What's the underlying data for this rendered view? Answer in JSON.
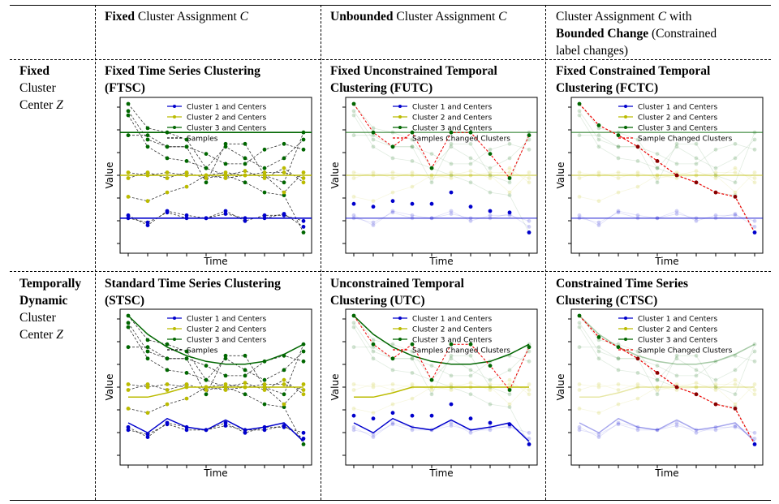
{
  "header": {
    "col1": {
      "pre": "",
      "bold": "Fixed",
      "post": " Cluster Assignment ",
      "var": "C"
    },
    "col2": {
      "bold": "Unbounded",
      "post": " Cluster Assignment ",
      "var": "C"
    },
    "col3": {
      "line1_pre": "Cluster Assignment ",
      "line1_var": "C",
      "line1_post": " with",
      "line2_bold": "Bounded Change",
      "line2_post": " (Constrained",
      "line3": "label changes)"
    }
  },
  "rows": {
    "fixed": {
      "line1": "Fixed",
      "line2": "Cluster",
      "line3": "Center ",
      "var": "Z"
    },
    "dynamic": {
      "line1": "Temporally",
      "line2": "Dynamic",
      "line3": "Cluster",
      "line4": "Center ",
      "var": "Z"
    }
  },
  "panels": [
    {
      "title1": "Fixed Time Series Clustering",
      "title2": "(FTSC)",
      "legend": [
        "Cluster 1 and Centers",
        "Cluster 2 and Centers",
        "Cluster 3 and Centers",
        "Samples"
      ]
    },
    {
      "title1": "Fixed Unconstrained Temporal",
      "title2": "Clustering (FUTC)",
      "legend": [
        "Cluster 1 and Centers",
        "Cluster 2 and Centers",
        "Cluster 3 and Centers",
        "Samples Changed Clusters"
      ]
    },
    {
      "title1": "Fixed Constrained Temporal",
      "title2": "Clustering (FCTC)",
      "legend": [
        "Cluster 1 and Centers",
        "Cluster 2 and Centers",
        "Cluster 3 and Centers",
        "Sample Changed Clusters"
      ]
    },
    {
      "title1": "Standard Time Series Clustering",
      "title2": "(STSC)",
      "legend": [
        "Cluster 1 and Centers",
        "Cluster 2 and Centers",
        "Cluster 3 and Centers",
        "Samples"
      ]
    },
    {
      "title1": "Unconstrained Temporal",
      "title2": "Clustering (UTC)",
      "legend": [
        "Cluster 1 and Centers",
        "Cluster 2 and Centers",
        "Cluster 3 and Centers",
        "Samples Changed Clusters"
      ]
    },
    {
      "title1": "Constrained Time Series",
      "title2": "Clustering (CTSC)",
      "legend": [
        "Cluster 1 and Centers",
        "Cluster 2 and Centers",
        "Cluster 3 and Centers",
        "Sample Changed Clusters"
      ]
    }
  ],
  "axes": {
    "xlabel": "Time",
    "ylabel": "Value"
  },
  "colors": {
    "c1": "#0000cc",
    "c2": "#bbbb00",
    "c3": "#006600",
    "sample": "#000000",
    "changed": "#ee0000"
  },
  "chart_data": {
    "type": "line",
    "x": [
      0,
      1,
      2,
      3,
      4,
      5,
      6,
      7,
      8,
      9
    ],
    "fixed_centers": {
      "c1": 0.2,
      "c2": 0.5,
      "c3": 0.8
    },
    "dynamic_centers": {
      "c1": [
        0.25,
        0.18,
        0.28,
        0.22,
        0.2,
        0.27,
        0.2,
        0.22,
        0.25,
        0.12
      ],
      "c2": [
        0.43,
        0.43,
        0.46,
        0.5,
        0.5,
        0.5,
        0.5,
        0.5,
        0.5,
        0.5
      ],
      "c3": [
        1.0,
        0.87,
        0.78,
        0.72,
        0.68,
        0.66,
        0.66,
        0.68,
        0.73,
        0.8
      ]
    },
    "samples": [
      [
        0.95,
        0.75,
        0.7,
        0.7,
        0.45,
        0.72,
        0.72,
        0.5,
        0.45,
        0.8
      ],
      [
        1.0,
        0.83,
        0.8,
        0.75,
        0.55,
        0.7,
        0.62,
        0.55,
        0.62,
        0.75
      ],
      [
        0.78,
        0.78,
        0.7,
        0.7,
        0.65,
        0.58,
        0.58,
        0.68,
        0.72,
        0.68
      ],
      [
        0.92,
        0.7,
        0.62,
        0.6,
        0.55,
        0.5,
        0.45,
        0.38,
        0.36,
        0.1
      ],
      [
        0.52,
        0.5,
        0.52,
        0.5,
        0.5,
        0.52,
        0.5,
        0.52,
        0.52,
        0.48
      ],
      [
        0.48,
        0.52,
        0.48,
        0.52,
        0.48,
        0.5,
        0.53,
        0.48,
        0.55,
        0.45
      ],
      [
        0.35,
        0.32,
        0.38,
        0.42,
        0.5,
        0.48,
        0.5,
        0.5,
        0.38,
        0.52
      ],
      [
        0.22,
        0.15,
        0.25,
        0.22,
        0.2,
        0.25,
        0.18,
        0.22,
        0.22,
        0.18
      ],
      [
        0.2,
        0.17,
        0.24,
        0.2,
        0.2,
        0.23,
        0.2,
        0.2,
        0.23,
        0.14
      ]
    ],
    "changed_unconstrained": [
      1.0,
      0.8,
      0.7,
      0.8,
      0.55,
      0.8,
      0.8,
      0.65,
      0.48,
      0.78
    ],
    "changed_unconstrained_low": [
      0.3,
      0.28,
      0.32,
      0.3,
      0.3,
      0.38,
      0.28,
      0.25,
      0.24,
      0.1
    ],
    "changed_constrained": [
      1.0,
      0.85,
      0.78,
      0.7,
      0.6,
      0.5,
      0.45,
      0.38,
      0.35,
      0.1
    ]
  }
}
